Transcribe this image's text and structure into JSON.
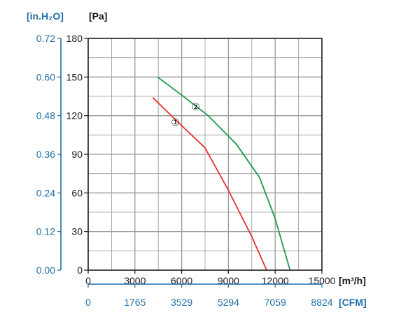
{
  "chart_data": {
    "type": "line",
    "x_unit": "[m³/h]",
    "x2_unit": "[CFM]",
    "y_unit": "[Pa]",
    "y2_unit": "[in.H₂O]",
    "x_ticks": [
      0,
      3000,
      6000,
      9000,
      12000,
      15000
    ],
    "x2_ticks": [
      "0",
      "1765",
      "3529",
      "5294",
      "7059",
      "8824"
    ],
    "y_ticks": [
      0,
      30,
      60,
      90,
      120,
      150,
      180
    ],
    "y2_ticks": [
      "0.00",
      "0.12",
      "0.24",
      "0.36",
      "0.48",
      "0.60",
      "0.72"
    ],
    "xlim": [
      0,
      15000
    ],
    "ylim": [
      0,
      180
    ],
    "grid": true,
    "series": [
      {
        "name": "①",
        "color": "#e8312a",
        "points": [
          [
            4150,
            134
          ],
          [
            5500,
            118
          ],
          [
            7500,
            95
          ],
          [
            9000,
            62
          ],
          [
            10500,
            26
          ],
          [
            11450,
            0
          ]
        ]
      },
      {
        "name": "②",
        "color": "#1e9a4a",
        "points": [
          [
            4450,
            150
          ],
          [
            6000,
            136
          ],
          [
            7700,
            120
          ],
          [
            9500,
            98
          ],
          [
            11000,
            72
          ],
          [
            12000,
            40
          ],
          [
            12950,
            0
          ]
        ]
      }
    ],
    "series_label_positions": [
      [
        5600,
        115
      ],
      [
        6900,
        127
      ]
    ]
  },
  "colors": {
    "secondary_axis": "#1f6fa5",
    "grid": "#9a9a9a",
    "axis": "#1a1a1a"
  }
}
